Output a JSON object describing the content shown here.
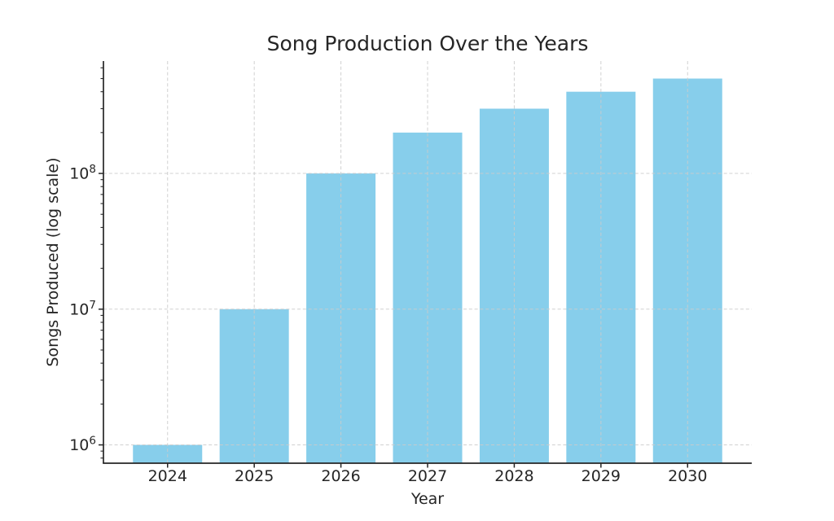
{
  "chart_data": {
    "type": "bar",
    "title": "Song Production Over the Years",
    "xlabel": "Year",
    "ylabel": "Songs Produced (log scale)",
    "categories": [
      "2024",
      "2025",
      "2026",
      "2027",
      "2028",
      "2029",
      "2030"
    ],
    "values": [
      1000000,
      10000000,
      100000000,
      200000000,
      300000000,
      400000000,
      500000000
    ],
    "yscale": "log",
    "ylim": [
      733000,
      673000000
    ],
    "y_major_ticks": [
      {
        "value": 1000000,
        "base": "10",
        "exponent": "6"
      },
      {
        "value": 10000000,
        "base": "10",
        "exponent": "7"
      },
      {
        "value": 100000000,
        "base": "10",
        "exponent": "8"
      }
    ],
    "grid": true,
    "grid_style": "dashed",
    "legend": null,
    "colors": {
      "bar": "#87CEEB",
      "grid": "#cbcbcb",
      "axis": "#262626",
      "text": "#262626",
      "background": "#ffffff"
    }
  }
}
